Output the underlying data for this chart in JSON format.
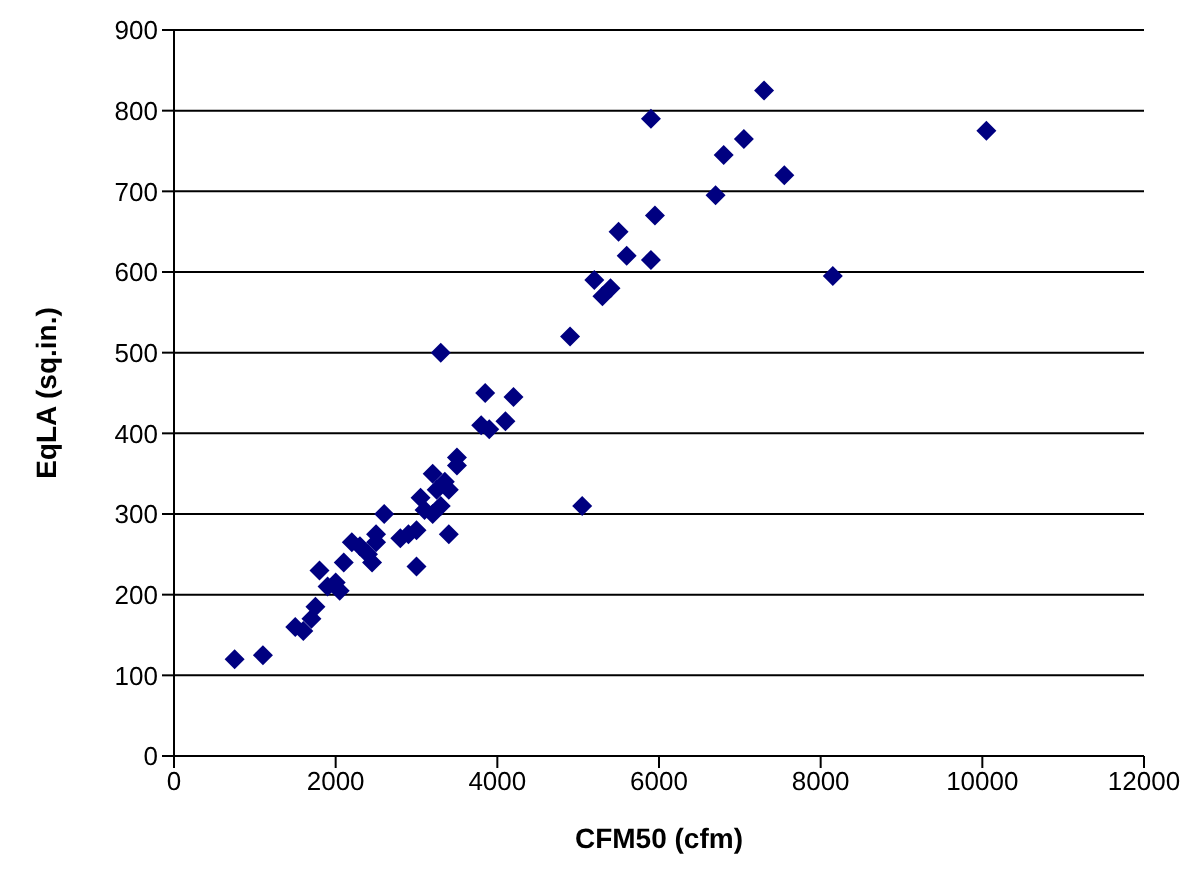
{
  "chart_data": {
    "type": "scatter",
    "xlabel": "CFM50 (cfm)",
    "ylabel": "EqLA (sq.in.)",
    "x": [
      750,
      1100,
      1500,
      1600,
      1700,
      1750,
      1800,
      1900,
      2000,
      2050,
      2100,
      2200,
      2300,
      2400,
      2450,
      2500,
      2500,
      2600,
      2800,
      2900,
      3000,
      3000,
      3050,
      3100,
      3200,
      3200,
      3250,
      3300,
      3300,
      3350,
      3400,
      3400,
      3500,
      3500,
      3800,
      3850,
      3900,
      4100,
      4200,
      4900,
      5050,
      5200,
      5300,
      5400,
      5500,
      5600,
      5900,
      5900,
      5950,
      6700,
      6800,
      7050,
      7300,
      7550,
      8150,
      10050
    ],
    "series": [
      {
        "color": "#000080",
        "values": [
          120,
          125,
          160,
          155,
          170,
          185,
          230,
          210,
          215,
          205,
          240,
          265,
          260,
          250,
          240,
          265,
          275,
          300,
          270,
          275,
          235,
          280,
          320,
          305,
          300,
          350,
          330,
          500,
          310,
          340,
          275,
          330,
          360,
          370,
          410,
          450,
          405,
          415,
          445,
          520,
          310,
          590,
          570,
          580,
          650,
          620,
          790,
          615,
          670,
          695,
          745,
          765,
          825,
          720,
          595,
          775
        ]
      }
    ],
    "xlim": [
      0,
      12000
    ],
    "xticks": [
      0,
      2000,
      4000,
      6000,
      8000,
      10000,
      12000
    ],
    "ylim": [
      0,
      900
    ],
    "yticks": [
      0,
      100,
      200,
      300,
      400,
      500,
      600,
      700,
      800,
      900
    ],
    "grid": "y",
    "marker": "diamond",
    "legend": false
  }
}
